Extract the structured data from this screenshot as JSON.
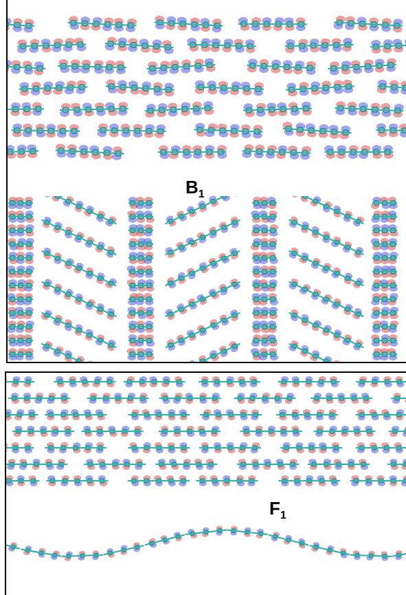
{
  "panels": [
    {
      "label": {
        "main": "B",
        "sub": "1"
      }
    },
    {
      "label": {
        "main": "F",
        "sub": "1"
      }
    }
  ]
}
